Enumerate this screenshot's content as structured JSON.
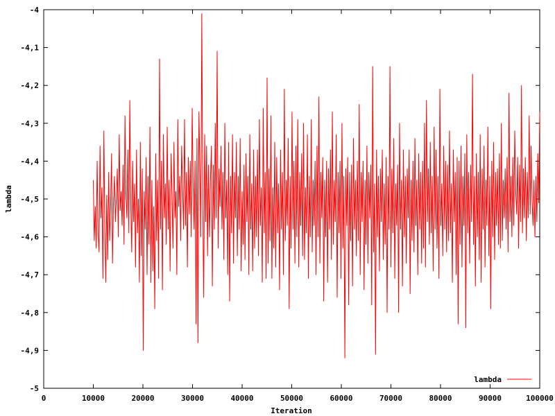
{
  "chart_data": {
    "type": "line",
    "title": "",
    "xlabel": "Iteration",
    "ylabel": "lambda",
    "xlim": [
      0,
      100000
    ],
    "ylim": [
      -5,
      -4
    ],
    "x_ticks": [
      0,
      10000,
      20000,
      30000,
      40000,
      50000,
      60000,
      70000,
      80000,
      90000,
      100000
    ],
    "y_ticks": [
      -5,
      -4.9,
      -4.8,
      -4.7,
      -4.6,
      -4.5,
      -4.4,
      -4.3,
      -4.2,
      -4.1,
      -4
    ],
    "x_tick_labels": [
      "0",
      "10000",
      "20000",
      "30000",
      "40000",
      "50000",
      "60000",
      "70000",
      "80000",
      "90000",
      "100000"
    ],
    "y_tick_labels": [
      "-5",
      "-4,9",
      "-4,8",
      "-4,7",
      "-4,6",
      "-4,5",
      "-4,4",
      "-4,3",
      "-4,2",
      "-4,1",
      "-4"
    ],
    "grid": false,
    "legend": "bottom-right",
    "series": [
      {
        "name": "lambda",
        "color": "#ff0000",
        "x_start": 10000,
        "x_end": 100000,
        "values": [
          -4.45,
          -4.61,
          -4.52,
          -4.63,
          -4.4,
          -4.59,
          -4.64,
          -4.36,
          -4.55,
          -4.47,
          -4.71,
          -4.32,
          -4.58,
          -4.72,
          -4.49,
          -4.66,
          -4.43,
          -4.61,
          -4.52,
          -4.38,
          -4.67,
          -4.51,
          -4.44,
          -4.56,
          -4.5,
          -4.42,
          -4.6,
          -4.33,
          -4.53,
          -4.48,
          -4.57,
          -4.41,
          -4.62,
          -4.28,
          -4.49,
          -4.55,
          -4.37,
          -4.59,
          -4.24,
          -4.51,
          -4.64,
          -4.4,
          -4.56,
          -4.46,
          -4.68,
          -4.37,
          -4.59,
          -4.5,
          -4.72,
          -4.35,
          -4.65,
          -4.42,
          -4.9,
          -4.48,
          -4.58,
          -4.39,
          -4.7,
          -4.44,
          -4.62,
          -4.31,
          -4.72,
          -4.45,
          -4.69,
          -4.52,
          -4.79,
          -4.38,
          -4.61,
          -4.45,
          -4.71,
          -4.13,
          -4.58,
          -4.4,
          -4.74,
          -4.33,
          -4.55,
          -4.46,
          -4.62,
          -4.31,
          -4.58,
          -4.45,
          -4.69,
          -4.38,
          -4.49,
          -4.63,
          -4.35,
          -4.55,
          -4.48,
          -4.7,
          -4.29,
          -4.52,
          -4.44,
          -4.61,
          -4.36,
          -4.47,
          -4.58,
          -4.29,
          -4.57,
          -4.43,
          -4.68,
          -4.39,
          -4.54,
          -4.4,
          -4.6,
          -4.26,
          -4.47,
          -4.58,
          -4.4,
          -4.83,
          -4.34,
          -4.88,
          -4.27,
          -4.41,
          -4.6,
          -4.01,
          -4.52,
          -4.76,
          -4.33,
          -4.56,
          -4.36,
          -4.65,
          -4.41,
          -4.6,
          -4.45,
          -4.36,
          -4.73,
          -4.41,
          -4.58,
          -4.3,
          -4.55,
          -4.11,
          -4.63,
          -4.42,
          -4.52,
          -4.36,
          -4.58,
          -4.43,
          -4.66,
          -4.3,
          -4.55,
          -4.45,
          -4.7,
          -4.35,
          -4.77,
          -4.44,
          -4.59,
          -4.33,
          -4.67,
          -4.43,
          -4.55,
          -4.35,
          -4.65,
          -4.44,
          -4.58,
          -4.34,
          -4.69,
          -4.48,
          -4.62,
          -4.41,
          -4.66,
          -4.38,
          -4.56,
          -4.44,
          -4.7,
          -4.33,
          -4.58,
          -4.46,
          -4.69,
          -4.37,
          -4.63,
          -4.44,
          -4.6,
          -4.37,
          -4.65,
          -4.29,
          -4.57,
          -4.47,
          -4.72,
          -4.26,
          -4.59,
          -4.43,
          -4.71,
          -4.18,
          -4.67,
          -4.42,
          -4.61,
          -4.28,
          -4.71,
          -4.47,
          -4.63,
          -4.35,
          -4.68,
          -4.39,
          -4.59,
          -4.46,
          -4.74,
          -4.37,
          -4.58,
          -4.43,
          -4.7,
          -4.21,
          -4.61,
          -4.45,
          -4.57,
          -4.34,
          -4.79,
          -4.44,
          -4.63,
          -4.27,
          -4.58,
          -4.4,
          -4.67,
          -4.36,
          -4.6,
          -4.29,
          -4.68,
          -4.43,
          -4.57,
          -4.38,
          -4.65,
          -4.3,
          -4.66,
          -4.47,
          -4.59,
          -4.33,
          -4.71,
          -4.44,
          -4.6,
          -4.29,
          -4.64,
          -4.45,
          -4.57,
          -4.4,
          -4.7,
          -4.36,
          -4.6,
          -4.23,
          -4.67,
          -4.43,
          -4.55,
          -4.39,
          -4.77,
          -4.45,
          -4.6,
          -4.4,
          -4.72,
          -4.42,
          -4.58,
          -4.37,
          -4.66,
          -4.27,
          -4.62,
          -4.45,
          -4.56,
          -4.33,
          -4.76,
          -4.43,
          -4.59,
          -4.4,
          -4.71,
          -4.3,
          -4.63,
          -4.44,
          -4.92,
          -4.42,
          -4.57,
          -4.39,
          -4.78,
          -4.43,
          -4.61,
          -4.41,
          -4.73,
          -4.34,
          -4.58,
          -4.45,
          -4.65,
          -4.4,
          -4.61,
          -4.25,
          -4.7,
          -4.43,
          -4.56,
          -4.4,
          -4.74,
          -4.45,
          -4.62,
          -4.36,
          -4.67,
          -4.43,
          -4.55,
          -4.41,
          -4.78,
          -4.15,
          -4.64,
          -4.46,
          -4.91,
          -4.37,
          -4.6,
          -4.44,
          -4.69,
          -4.42,
          -4.56,
          -4.37,
          -4.66,
          -4.46,
          -4.62,
          -4.39,
          -4.8,
          -4.44,
          -4.58,
          -4.15,
          -4.68,
          -4.42,
          -4.59,
          -4.34,
          -4.71,
          -4.46,
          -4.57,
          -4.41,
          -4.8,
          -4.3,
          -4.58,
          -4.45,
          -4.73,
          -4.37,
          -4.6,
          -4.44,
          -4.67,
          -4.42,
          -4.55,
          -4.37,
          -4.75,
          -4.45,
          -4.61,
          -4.4,
          -4.64,
          -4.34,
          -4.57,
          -4.45,
          -4.7,
          -4.38,
          -4.58,
          -4.43,
          -4.67,
          -4.4,
          -4.63,
          -4.3,
          -4.68,
          -4.24,
          -4.56,
          -4.42,
          -4.62,
          -4.35,
          -4.59,
          -4.44,
          -4.69,
          -4.31,
          -4.58,
          -4.37,
          -4.63,
          -4.44,
          -4.71,
          -4.21,
          -4.57,
          -4.46,
          -4.65,
          -4.36,
          -4.58,
          -4.4,
          -4.64,
          -4.41,
          -4.61,
          -4.32,
          -4.59,
          -4.46,
          -4.72,
          -4.37,
          -4.56,
          -4.43,
          -4.7,
          -4.39,
          -4.83,
          -4.4,
          -4.62,
          -4.36,
          -4.68,
          -4.44,
          -4.57,
          -4.38,
          -4.84,
          -4.33,
          -4.59,
          -4.43,
          -4.67,
          -4.41,
          -4.56,
          -4.17,
          -4.62,
          -4.44,
          -4.73,
          -4.38,
          -4.6,
          -4.43,
          -4.66,
          -4.33,
          -4.72,
          -4.42,
          -4.58,
          -4.36,
          -4.68,
          -4.45,
          -4.57,
          -4.31,
          -4.65,
          -4.44,
          -4.79,
          -4.4,
          -4.6,
          -4.35,
          -4.66,
          -4.43,
          -4.57,
          -4.42,
          -4.62,
          -4.38,
          -4.63,
          -4.3,
          -4.61,
          -4.45,
          -4.55,
          -4.42,
          -4.58,
          -4.39,
          -4.64,
          -4.22,
          -4.56,
          -4.44,
          -4.6,
          -4.39,
          -4.57,
          -4.32,
          -4.48,
          -4.54,
          -4.39,
          -4.63,
          -4.41,
          -4.56,
          -4.2,
          -4.59,
          -4.42,
          -4.55,
          -4.39,
          -4.61,
          -4.43,
          -4.55,
          -4.28,
          -4.54,
          -4.36,
          -4.5,
          -4.57,
          -4.45,
          -4.6,
          -4.44,
          -4.56,
          -4.38,
          -4.51,
          -4.27
        ]
      }
    ]
  }
}
